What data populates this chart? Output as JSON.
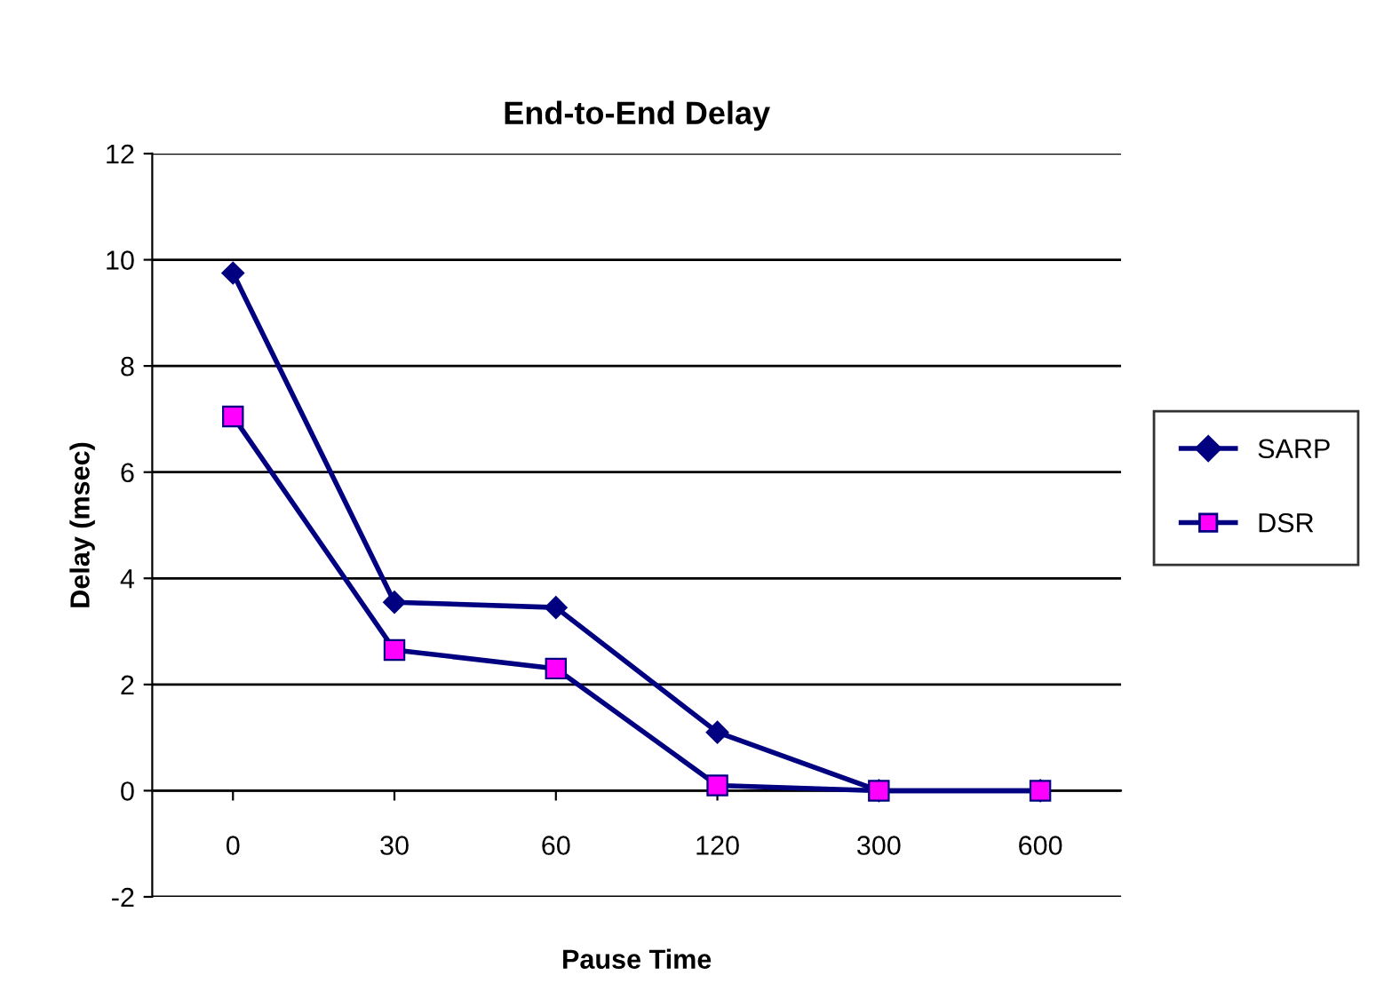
{
  "chart_data": {
    "type": "line",
    "title": "End-to-End Delay",
    "xlabel": "Pause Time",
    "ylabel": "Delay (msec)",
    "categories": [
      "0",
      "30",
      "60",
      "120",
      "300",
      "600"
    ],
    "series": [
      {
        "name": "SARP",
        "color": "#000080",
        "marker": "diamond",
        "values": [
          9.75,
          3.55,
          3.45,
          1.1,
          0,
          0
        ]
      },
      {
        "name": "DSR",
        "color": "#000080",
        "colors": [
          "#ff00ff",
          "#ff00ff",
          "#ff00ff",
          "#ff00ff",
          "#ff00ff",
          "#ff00ff"
        ],
        "marker": "square",
        "values": [
          7.05,
          2.65,
          2.3,
          0.1,
          0,
          0
        ]
      }
    ],
    "ylim": [
      -2,
      12
    ],
    "yticks": [
      -2,
      0,
      2,
      4,
      6,
      8,
      10,
      12
    ],
    "grid": "y",
    "legend": "right"
  }
}
